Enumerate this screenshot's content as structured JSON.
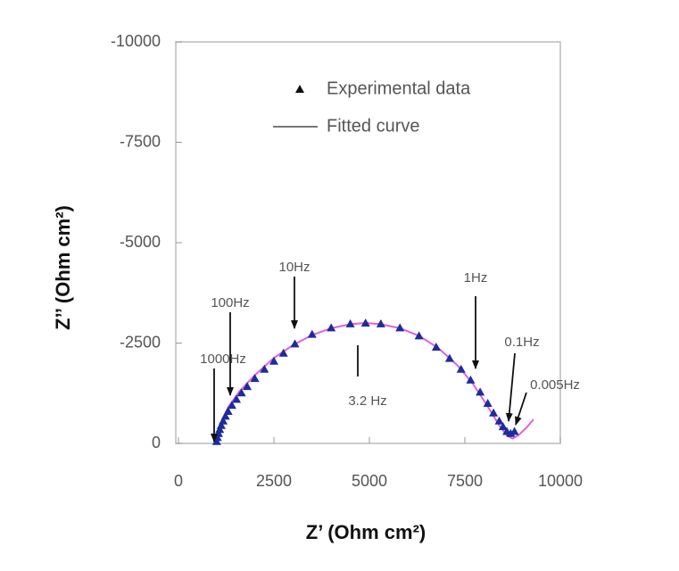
{
  "chart_data": {
    "type": "scatter",
    "x_label": "Z’ (Ohm cm²)",
    "y_label": "Z’’ (Ohm cm²)",
    "xlim": [
      0,
      10000
    ],
    "xticks": [
      0,
      2500,
      5000,
      7500,
      10000
    ],
    "ylim": [
      0,
      -10000
    ],
    "yticks": [
      0,
      -2500,
      -5000,
      -7500,
      -10000
    ],
    "legend": "top-right",
    "series": [
      {
        "name": "Experimental data",
        "color": "#1c2c9c",
        "kind": "scatter",
        "x": [
          1000,
          1020,
          1050,
          1080,
          1120,
          1170,
          1230,
          1300,
          1400,
          1520,
          1650,
          1800,
          2000,
          2250,
          2500,
          2750,
          3050,
          3500,
          4000,
          4500,
          4900,
          5300,
          5800,
          6300,
          6750,
          7100,
          7400,
          7650,
          7900,
          8100,
          8250,
          8400,
          8500,
          8600,
          8700,
          8800
        ],
        "values": [
          -50,
          -150,
          -250,
          -350,
          -450,
          -560,
          -680,
          -800,
          -950,
          -1100,
          -1260,
          -1420,
          -1620,
          -1850,
          -2050,
          -2250,
          -2480,
          -2720,
          -2880,
          -2980,
          -3000,
          -2980,
          -2880,
          -2680,
          -2400,
          -2120,
          -1850,
          -1580,
          -1280,
          -1000,
          -760,
          -560,
          -420,
          -300,
          -250,
          -300
        ]
      },
      {
        "name": "Fitted curve",
        "color": "#e060e0",
        "kind": "line",
        "x": [
          1000,
          1100,
          1300,
          1600,
          2000,
          2500,
          3000,
          3500,
          4000,
          4500,
          4900,
          5300,
          5800,
          6300,
          6800,
          7300,
          7700,
          8100,
          8400,
          8600,
          8750,
          8900,
          9100,
          9300
        ],
        "values": [
          0,
          -480,
          -900,
          -1300,
          -1700,
          -2130,
          -2450,
          -2700,
          -2870,
          -2970,
          -3000,
          -2970,
          -2870,
          -2680,
          -2380,
          -1950,
          -1500,
          -920,
          -450,
          -200,
          -120,
          -200,
          -380,
          -600
        ]
      }
    ],
    "annotations": [
      "1000Hz",
      "100Hz",
      "10Hz",
      "1Hz",
      "0.1Hz",
      "0.005Hz",
      "3.2 Hz"
    ]
  }
}
